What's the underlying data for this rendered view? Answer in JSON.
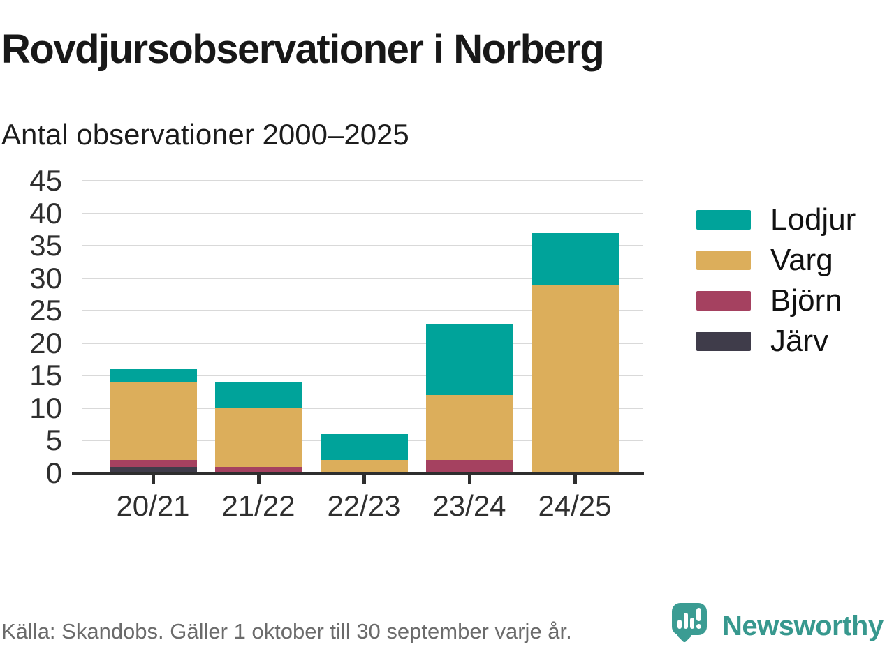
{
  "header": {
    "title": "Rovdjursobservationer i Norberg",
    "subtitle": "Antal observationer 2000–2025"
  },
  "chart_data": {
    "type": "bar",
    "stacked": true,
    "title": "Rovdjursobservationer i Norberg",
    "subtitle": "Antal observationer 2000–2025",
    "categories": [
      "20/21",
      "21/22",
      "22/23",
      "23/24",
      "24/25"
    ],
    "series": [
      {
        "name": "Järv",
        "color": "#3f3c4a",
        "values": [
          1,
          0,
          0,
          0,
          0
        ]
      },
      {
        "name": "Björn",
        "color": "#a54160",
        "values": [
          1,
          1,
          0,
          2,
          0
        ]
      },
      {
        "name": "Varg",
        "color": "#dcae5b",
        "values": [
          12,
          9,
          2,
          10,
          29
        ]
      },
      {
        "name": "Lodjur",
        "color": "#00a39a",
        "values": [
          2,
          4,
          4,
          11,
          8
        ]
      }
    ],
    "stack_totals": [
      16,
      14,
      6,
      23,
      37
    ],
    "legend_order": [
      "Lodjur",
      "Varg",
      "Björn",
      "Järv"
    ],
    "legend_position": "right",
    "y_ticks": [
      0,
      5,
      10,
      15,
      20,
      25,
      30,
      35,
      40,
      45
    ],
    "ylim": [
      0,
      45
    ],
    "xlabel": "",
    "ylabel": "",
    "grid": "horizontal"
  },
  "footer": {
    "source": "Källa: Skandobs. Gäller 1 oktober till 30 september varje år.",
    "brand": "Newsworthy"
  },
  "colors": {
    "lodjur": "#00a39a",
    "varg": "#dcae5b",
    "bjorn": "#a54160",
    "jarv": "#3f3c4a",
    "axis": "#2e2e2e",
    "gridline": "#d9d9d9",
    "brand_teal": "#37988e",
    "source_gray": "#6b6b6b"
  }
}
